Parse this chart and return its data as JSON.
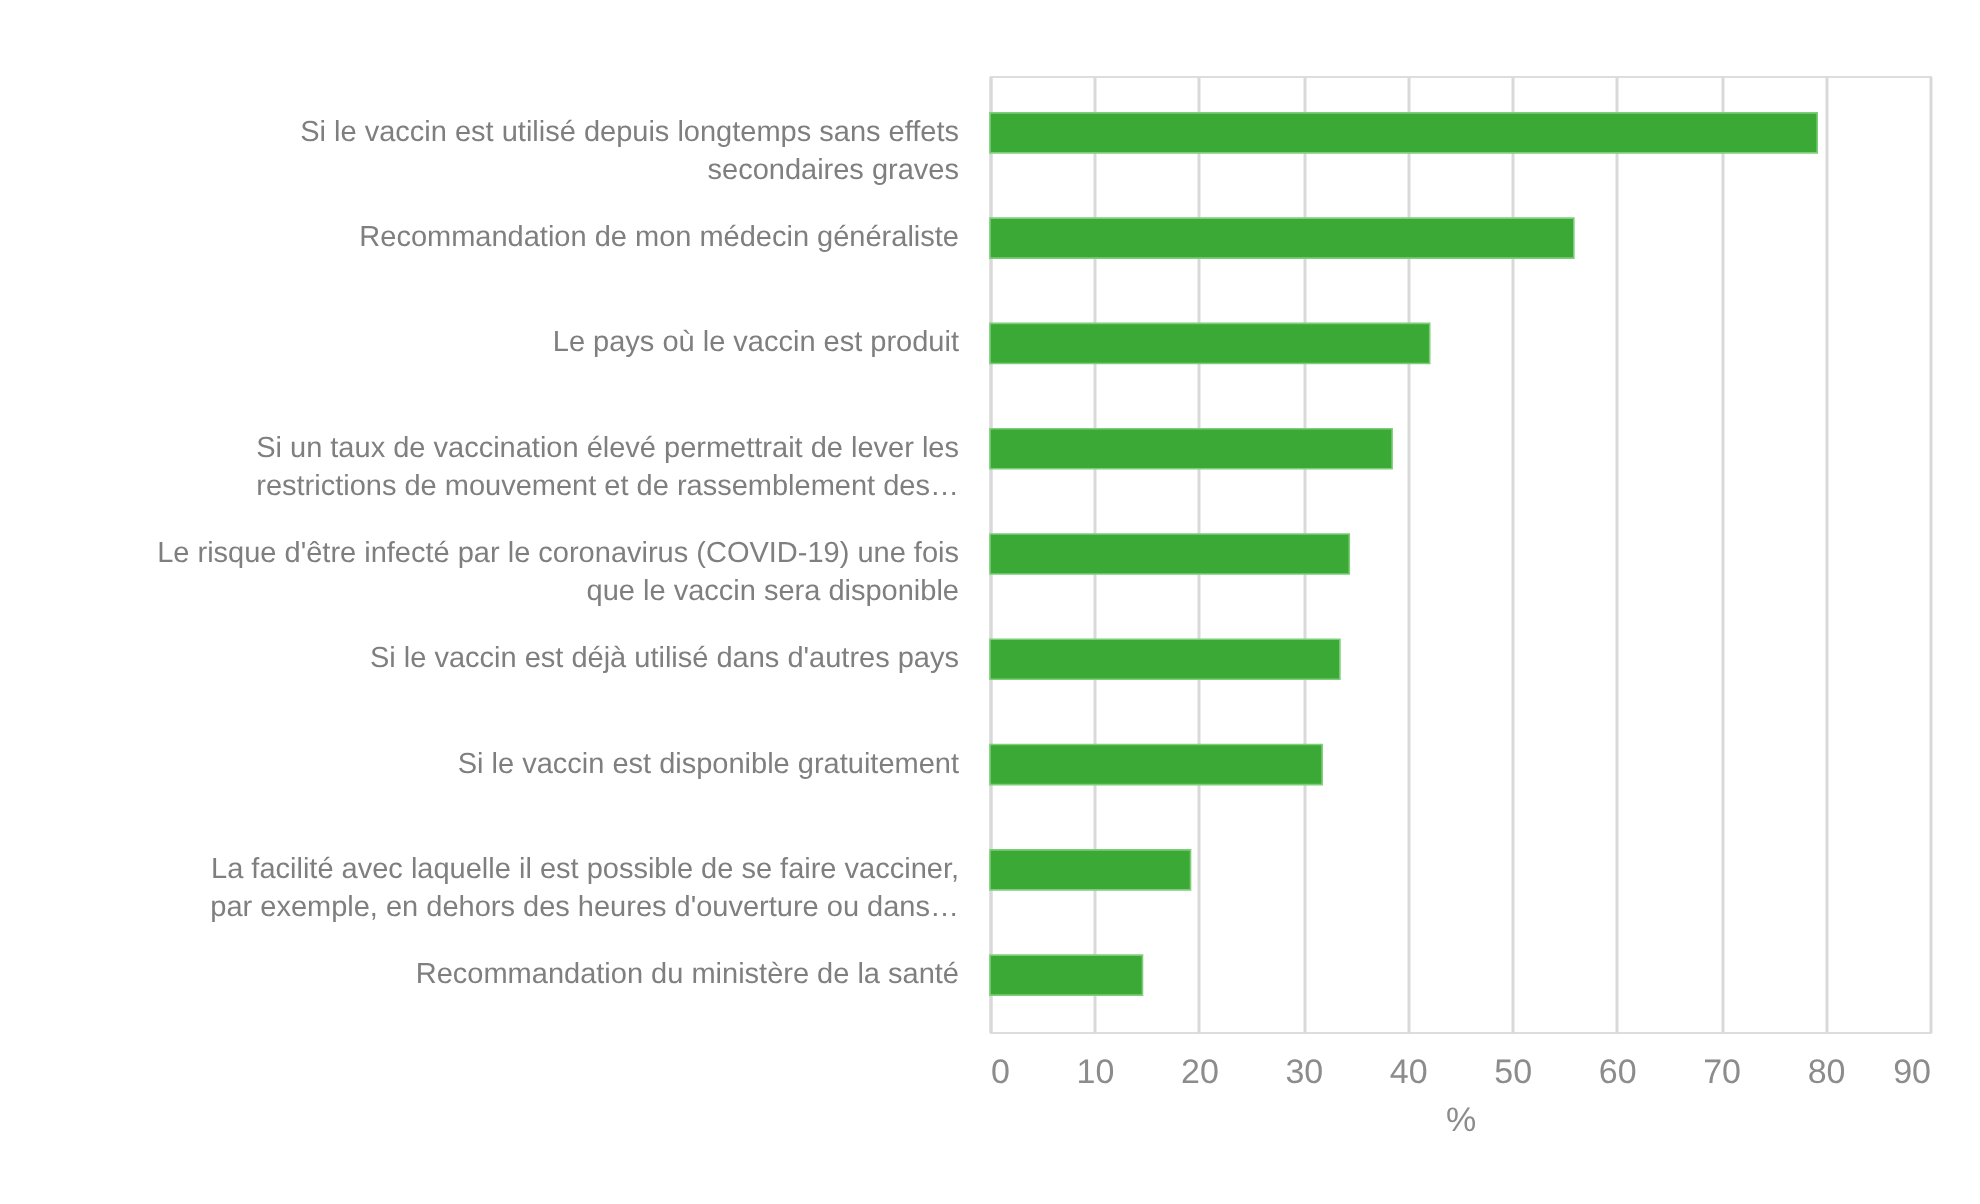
{
  "chart_data": {
    "type": "bar",
    "orientation": "horizontal",
    "xlabel": "%",
    "categories": [
      "Si le vaccin est utilisé depuis longtemps sans effets secondaires graves",
      "Recommandation de mon médecin généraliste",
      "Le pays où le vaccin est produit",
      "Si un taux de vaccination élevé permettrait de lever les restrictions de mouvement et de rassemblement des…",
      "Le risque d'être infecté par le coronavirus (COVID-19) une fois que le vaccin sera disponible",
      "Si le vaccin est déjà utilisé dans d'autres pays",
      "Si le vaccin est disponible gratuitement",
      "La facilité avec laquelle il est possible de se faire vacciner, par exemple, en dehors des heures d'ouverture ou dans…",
      "Recommandation du ministère de la santé"
    ],
    "values": [
      79.2,
      55.9,
      42.1,
      38.5,
      34.4,
      33.5,
      31.8,
      19.2,
      14.6
    ],
    "color": "#3ba935",
    "xlim": [
      0,
      90
    ],
    "xticks": [
      0,
      10,
      20,
      30,
      40,
      50,
      60,
      70,
      80,
      90
    ],
    "grid": "x"
  }
}
